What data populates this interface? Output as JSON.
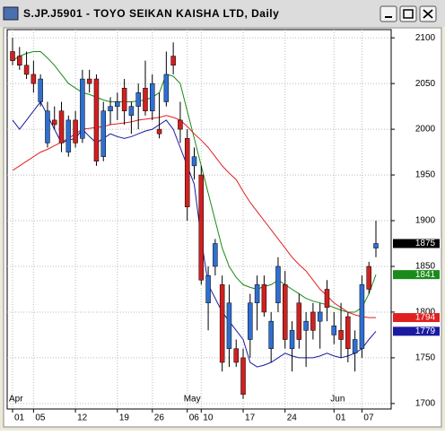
{
  "chart_data": {
    "type": "candlestick",
    "title": "S.JP.J5901 - TOYO SEIKAN KAISHA LTD, Daily",
    "categories": [
      "01",
      null,
      null,
      "05",
      null,
      null,
      null,
      null,
      null,
      "12",
      null,
      null,
      null,
      null,
      null,
      "19",
      null,
      null,
      null,
      null,
      "26",
      null,
      null,
      null,
      null,
      "06",
      null,
      "10",
      null,
      null,
      null,
      null,
      null,
      "17",
      null,
      null,
      null,
      null,
      null,
      "24",
      null,
      null,
      null,
      null,
      null,
      null,
      "01",
      null,
      null,
      null,
      "07",
      null,
      null
    ],
    "months": [
      "Apr",
      null,
      null,
      null,
      null,
      null,
      null,
      null,
      null,
      null,
      null,
      null,
      null,
      null,
      null,
      null,
      null,
      null,
      null,
      null,
      null,
      null,
      null,
      null,
      null,
      "May",
      null,
      null,
      null,
      null,
      null,
      null,
      null,
      null,
      null,
      null,
      null,
      null,
      null,
      null,
      null,
      null,
      null,
      null,
      null,
      null,
      "Jun",
      null,
      null,
      null,
      null,
      null,
      null
    ],
    "open": [
      2085,
      2080,
      2070,
      2060,
      2030,
      1985,
      2010,
      2020,
      1975,
      2010,
      1990,
      2055,
      2055,
      1970,
      2020,
      2025,
      2045,
      2015,
      2025,
      2045,
      2020,
      2000,
      2030,
      2080,
      2010,
      1990,
      1960,
      1950,
      1810,
      1850,
      1830,
      1760,
      1760,
      1750,
      1770,
      1810,
      1830,
      1760,
      1810,
      1830,
      1760,
      1810,
      1780,
      1800,
      1790,
      1825,
      1775,
      1780,
      1795,
      1755,
      1760,
      1850,
      1870
    ],
    "high": [
      2100,
      2090,
      2085,
      2075,
      2060,
      2030,
      2025,
      2030,
      2015,
      2020,
      2065,
      2065,
      2060,
      2030,
      2035,
      2040,
      2055,
      2030,
      2050,
      2075,
      2060,
      2040,
      2085,
      2095,
      2030,
      2000,
      1980,
      1960,
      1850,
      1880,
      1840,
      1830,
      1770,
      1760,
      1820,
      1840,
      1840,
      1800,
      1860,
      1845,
      1790,
      1820,
      1800,
      1810,
      1810,
      1835,
      1800,
      1810,
      1800,
      1780,
      1840,
      1855,
      1900
    ],
    "low": [
      2070,
      2065,
      2055,
      2040,
      2025,
      1980,
      2000,
      1975,
      1970,
      1980,
      1985,
      2040,
      1960,
      1965,
      2005,
      2010,
      2005,
      1995,
      2000,
      2015,
      2010,
      1990,
      2025,
      2060,
      1985,
      1900,
      1945,
      1830,
      1780,
      1840,
      1735,
      1740,
      1740,
      1705,
      1750,
      1780,
      1795,
      1745,
      1800,
      1760,
      1735,
      1760,
      1740,
      1770,
      1760,
      1790,
      1765,
      1750,
      1745,
      1735,
      1750,
      1820,
      1860
    ],
    "close": [
      2075,
      2070,
      2060,
      2050,
      2055,
      2020,
      2005,
      1985,
      2010,
      1985,
      2055,
      2050,
      1965,
      2020,
      2025,
      2030,
      2020,
      2025,
      2040,
      2020,
      2050,
      1995,
      2060,
      2070,
      2000,
      1915,
      1970,
      1835,
      1840,
      1875,
      1745,
      1810,
      1745,
      1710,
      1810,
      1830,
      1800,
      1790,
      1850,
      1770,
      1780,
      1770,
      1790,
      1780,
      1800,
      1805,
      1785,
      1770,
      1760,
      1770,
      1830,
      1825,
      1875
    ],
    "up_color": "#2f6fd0",
    "down_color": "#d02020",
    "lines": [
      {
        "color": "#1a8a1a",
        "values": [
          2075,
          2080,
          2083,
          2085,
          2085,
          2078,
          2070,
          2060,
          2050,
          2045,
          2040,
          2038,
          2035,
          2032,
          2030,
          2030,
          2030,
          2030,
          2031,
          2032,
          2035,
          2040,
          2060,
          2058,
          2050,
          2020,
          1990,
          1960,
          1930,
          1900,
          1870,
          1850,
          1838,
          1830,
          1827,
          1825,
          1828,
          1830,
          1835,
          1830,
          1825,
          1820,
          1815,
          1812,
          1810,
          1808,
          1805,
          1802,
          1800,
          1800,
          1805,
          1820,
          1841
        ]
      },
      {
        "color": "#e02020",
        "values": [
          1955,
          1960,
          1965,
          1970,
          1975,
          1978,
          1982,
          1986,
          1990,
          1995,
          2000,
          2001,
          2002,
          2003,
          2005,
          2006,
          2007,
          2008,
          2010,
          2011,
          2012,
          2013,
          2015,
          2013,
          2010,
          2003,
          1995,
          1988,
          1980,
          1970,
          1960,
          1952,
          1945,
          1932,
          1920,
          1910,
          1900,
          1890,
          1880,
          1870,
          1860,
          1852,
          1845,
          1835,
          1825,
          1818,
          1810,
          1805,
          1800,
          1797,
          1795,
          1794,
          1794
        ]
      },
      {
        "color": "#1a1aa0",
        "values": [
          2010,
          2000,
          2010,
          2020,
          2030,
          2015,
          2000,
          1985,
          1988,
          1990,
          2000,
          1992,
          1985,
          1990,
          1995,
          1992,
          1990,
          1992,
          1995,
          1998,
          2000,
          2005,
          2010,
          2000,
          1980,
          1960,
          1940,
          1880,
          1830,
          1815,
          1800,
          1790,
          1780,
          1770,
          1745,
          1740,
          1742,
          1745,
          1750,
          1755,
          1752,
          1750,
          1750,
          1750,
          1752,
          1755,
          1752,
          1750,
          1752,
          1755,
          1760,
          1770,
          1779
        ]
      }
    ],
    "last_close_color": "#000000",
    "ylim": [
      1694,
      2109
    ],
    "yticks": [
      1700,
      1750,
      1800,
      1850,
      1900,
      1950,
      2000,
      2050,
      2100
    ],
    "grid": true
  }
}
